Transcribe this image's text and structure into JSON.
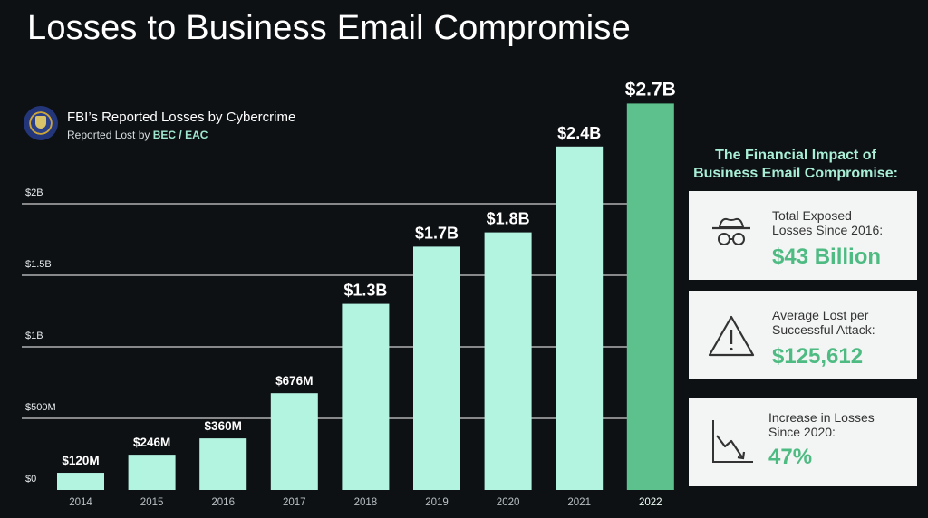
{
  "title": "Losses to Business Email Compromise",
  "subtitle": "FBI’s Reported Losses by Cybercrime",
  "subsubtitle_prefix": "Reported Lost by ",
  "subsubtitle_accent": "BEC / EAC",
  "side_heading_line1": "The Financial Impact of",
  "side_heading_line2": "Business Email Compromise:",
  "cards": [
    {
      "label_line1": "Total Exposed",
      "label_line2": "Losses Since 2016:",
      "value": "$43 Billion",
      "icon": "spy-icon"
    },
    {
      "label_line1": "Average Lost per",
      "label_line2": "Successful Attack:",
      "value": "$125,612",
      "icon": "warning-icon"
    },
    {
      "label_line1": "Increase in Losses",
      "label_line2": "Since 2020:",
      "value": "47%",
      "icon": "trend-down-icon"
    }
  ],
  "colors": {
    "bar": "#b3f4e1",
    "highlight": "#5cc18c",
    "grid": "#ffffff"
  },
  "chart_data": {
    "type": "bar",
    "categories": [
      "2014",
      "2015",
      "2016",
      "2017",
      "2018",
      "2019",
      "2020",
      "2021",
      "2022"
    ],
    "values": [
      120,
      246,
      360,
      676,
      1300,
      1700,
      1800,
      2400,
      2700
    ],
    "value_labels": [
      "$120M",
      "$246M",
      "$360M",
      "$676M",
      "$1.3B",
      "$1.7B",
      "$1.8B",
      "$2.4B",
      "$2.7B"
    ],
    "ylim": [
      0,
      2000
    ],
    "yticks": [
      0,
      500,
      1000,
      1500,
      2000
    ],
    "ytick_labels": [
      "$0",
      "$500M",
      "$1B",
      "$1.5B",
      "$2B"
    ],
    "highlight_category": "2022",
    "grid": true
  }
}
